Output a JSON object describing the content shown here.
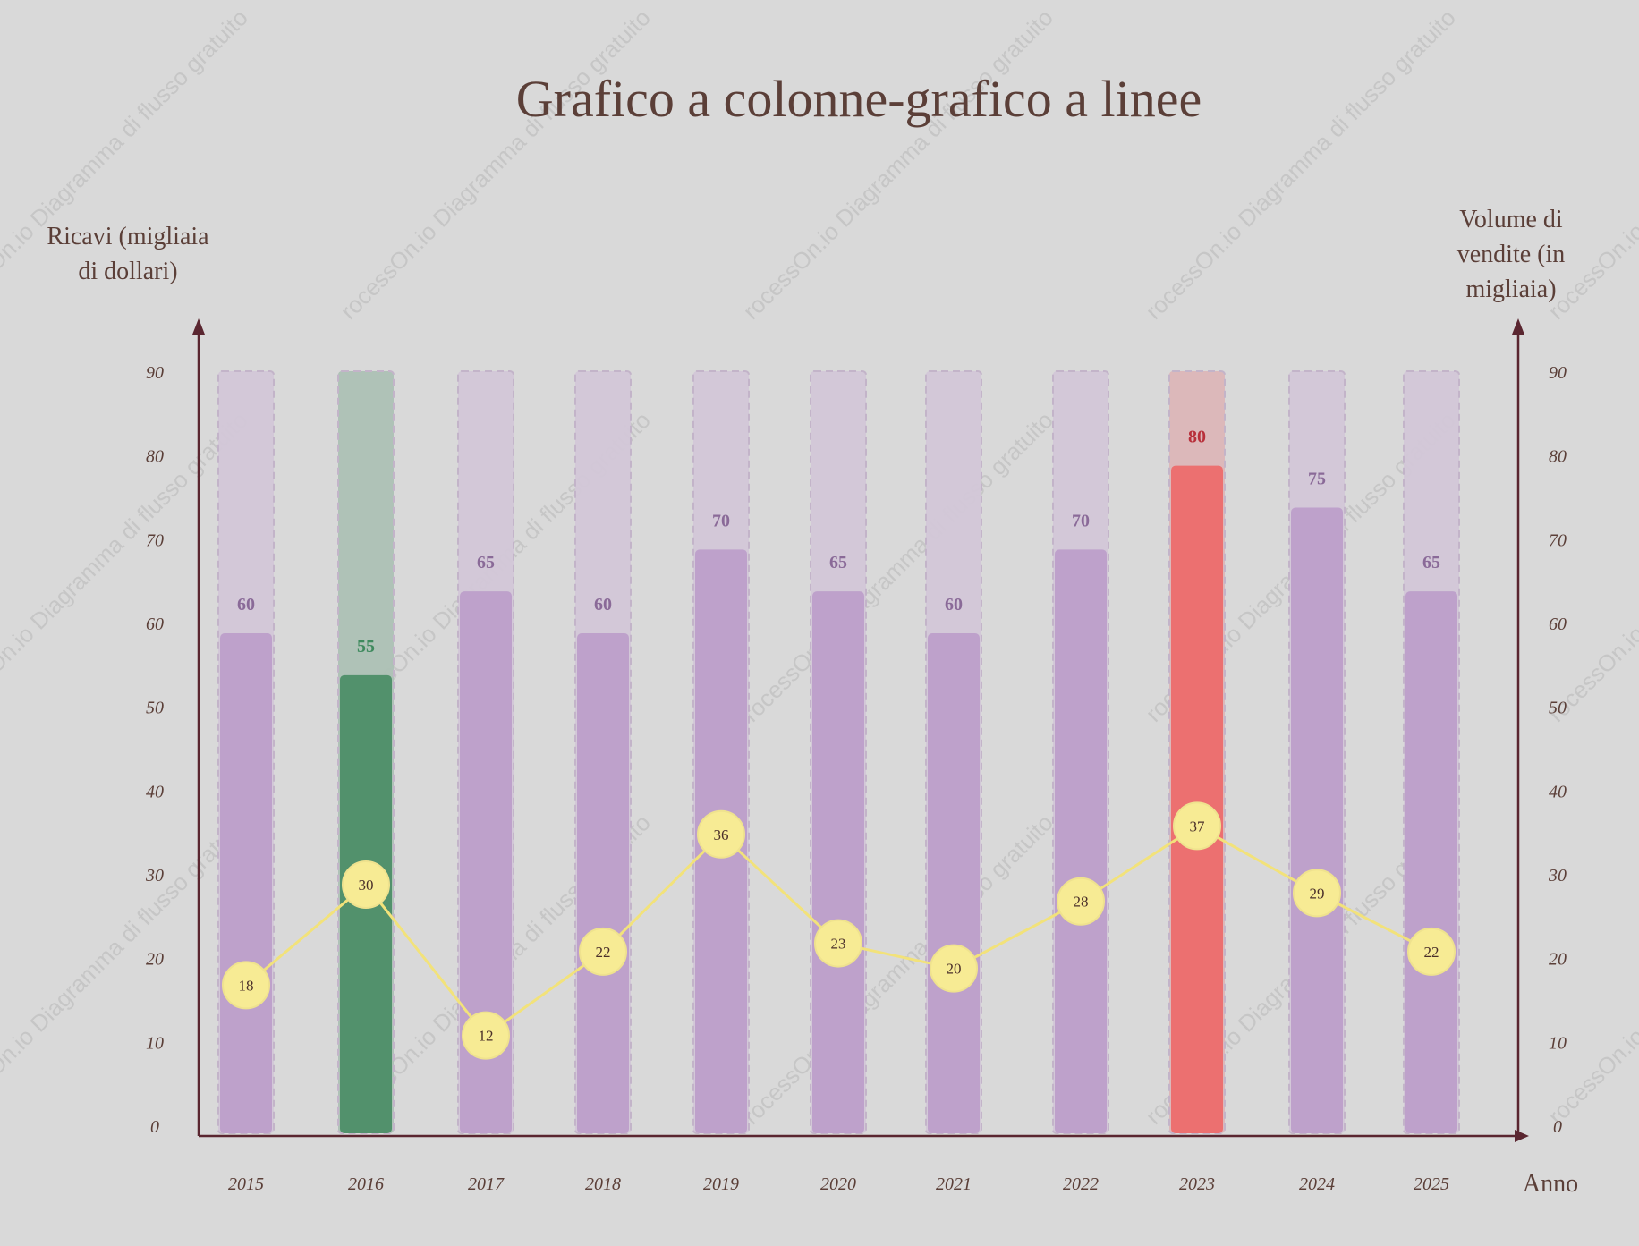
{
  "watermark": "rocessOn.io Diagramma di flusso gratuito",
  "chart_data": {
    "type": "bar",
    "title": "Grafico a colonne-grafico a linee",
    "ylabel_left": "Ricavi (migliaia di dollari)",
    "ylabel_left_lines": [
      "Ricavi (migliaia",
      "di dollari)"
    ],
    "ylabel_right": "Volume di vendite (in migliaia)",
    "ylabel_right_lines": [
      "Volume di",
      "vendite (in",
      "migliaia)"
    ],
    "xlabel": "Anno",
    "ylim": [
      0,
      90
    ],
    "yticks": [
      "0",
      "10",
      "20",
      "30",
      "40",
      "50",
      "60",
      "70",
      "80",
      "90"
    ],
    "categories": [
      "2015",
      "2016",
      "2017",
      "2018",
      "2019",
      "2020",
      "2021",
      "2022",
      "2023",
      "2024",
      "2025"
    ],
    "series": [
      {
        "type": "bar",
        "values": [
          60,
          55,
          65,
          60,
          70,
          65,
          60,
          70,
          80,
          75,
          65
        ]
      },
      {
        "type": "line",
        "values": [
          18,
          30,
          12,
          22,
          36,
          23,
          20,
          28,
          37,
          29,
          22
        ]
      }
    ],
    "colors": {
      "bar": "#bea1cb",
      "bar_background": "#d3c8d8",
      "bar_label": "#8a6a98",
      "highlight_low_bar": "#52916c",
      "highlight_low_background": "#adc1b6",
      "highlight_low_label": "#3f8a5e",
      "highlight_high_bar": "#ec7070",
      "highlight_high_background": "#ddb7b9",
      "highlight_high_label": "#b8303b",
      "line": "#f2e27a",
      "marker": "#f7eb94",
      "axis": "#5a2630"
    },
    "grid": false,
    "legend": "none"
  }
}
